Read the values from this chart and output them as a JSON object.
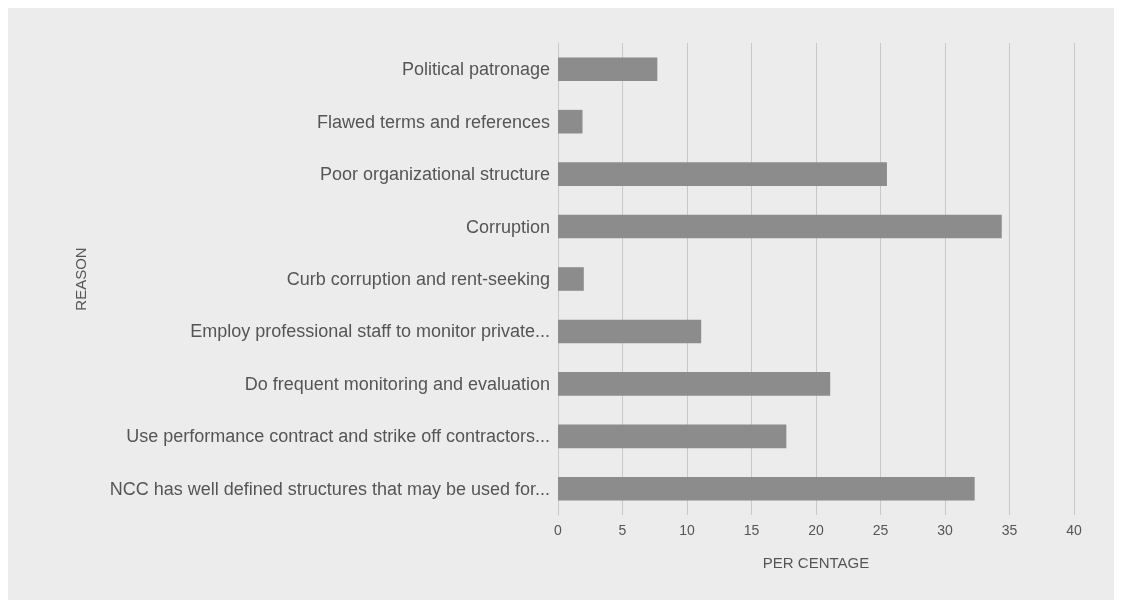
{
  "chart_data": {
    "type": "bar",
    "orientation": "horizontal",
    "xlabel": "PER CENTAGE",
    "ylabel": "REASON",
    "categories": [
      "Political patronage",
      "Flawed terms and references",
      "Poor organizational structure",
      "Corruption",
      "Curb corruption and rent-seeking",
      "Employ professional staff to monitor private...",
      "Do frequent monitoring and evaluation",
      "Use performance contract and strike off contractors...",
      "NCC has well defined structures that may be used for..."
    ],
    "values": [
      7.7,
      1.9,
      25.5,
      34.4,
      2.0,
      11.1,
      21.1,
      17.7,
      32.3
    ],
    "color": "#8c8c8c",
    "xlim": [
      0,
      40
    ],
    "xticks": [
      0,
      5,
      10,
      15,
      20,
      25,
      30,
      35,
      40
    ],
    "grid": "x"
  }
}
